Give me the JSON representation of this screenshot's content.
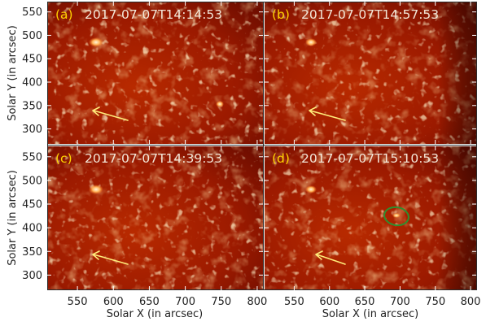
{
  "figure": {
    "y_axis_label": "Solar Y (in arcsec)",
    "x_axis_label": "Solar X (in arcsec)",
    "x_ticks": [
      "550",
      "600",
      "650",
      "700",
      "750",
      "800"
    ],
    "y_ticks": [
      "550",
      "500",
      "450",
      "400",
      "350",
      "300"
    ],
    "x_range": [
      508,
      808
    ],
    "y_range": [
      268,
      572
    ],
    "label_color": "#ffd400",
    "timestamp_color": "#f3e7d8",
    "arrow_color": "#ffec7a",
    "ellipse_color": "#2f8f2f",
    "panels": [
      {
        "letter": "(a)",
        "timestamp": "2017-07-07T14:14:53"
      },
      {
        "letter": "(b)",
        "timestamp": "2017-07-07T14:57:53"
      },
      {
        "letter": "(c)",
        "timestamp": "2017-07-07T14:39:53"
      },
      {
        "letter": "(d)",
        "timestamp": "2017-07-07T15:10:53"
      }
    ]
  }
}
